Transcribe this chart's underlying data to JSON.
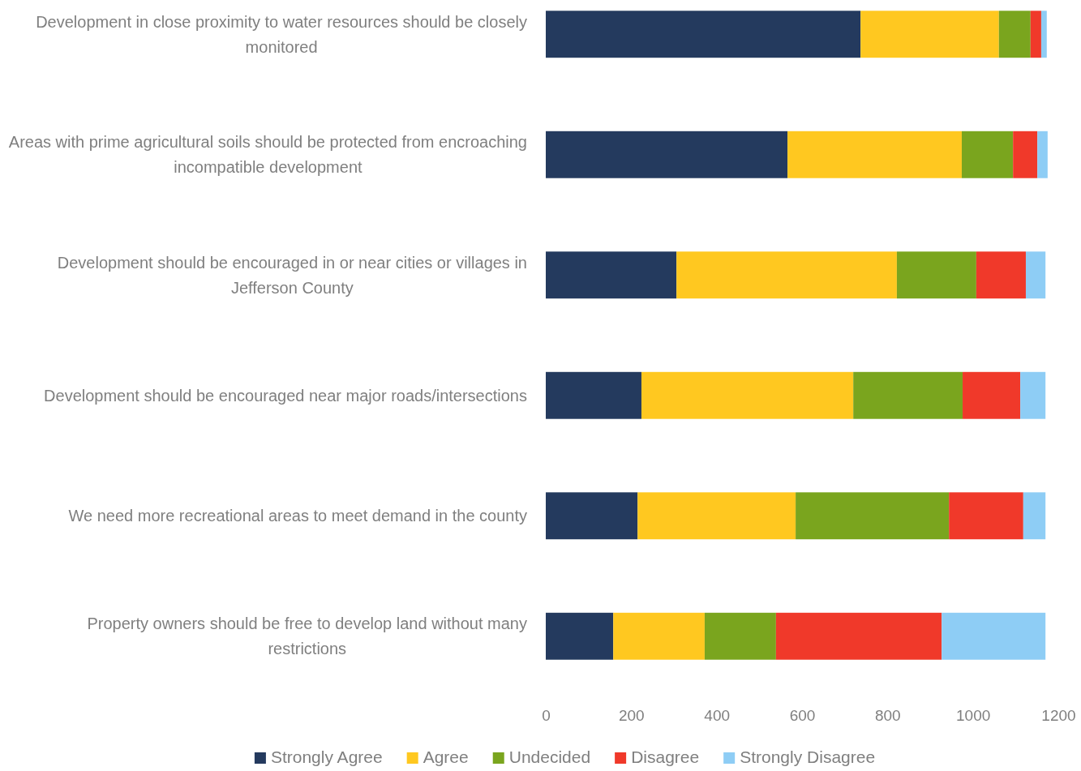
{
  "chart_data": {
    "type": "bar",
    "orientation": "horizontal",
    "stacked": true,
    "legend": "bottom",
    "grid": false,
    "categories": [
      "Development in close proximity to water resources should be closely monitored",
      "Areas with prime agricultural soils should be protected from encroaching incompatible development",
      "Development should be encouraged in or near cities or villages in Jefferson County",
      "Development should be encouraged near major roads/intersections",
      "We need more recreational areas to meet demand in the county",
      "Property owners should be free to develop land without many restrictions"
    ],
    "xlim": [
      0,
      1200
    ],
    "xticks": [
      0,
      200,
      400,
      600,
      800,
      1000,
      1200
    ],
    "series": [
      {
        "name": "Strongly Agree",
        "color": "#243a5e",
        "values": [
          737,
          566,
          306,
          224,
          215,
          158
        ]
      },
      {
        "name": "Agree",
        "color": "#ffc820",
        "values": [
          324,
          408,
          516,
          496,
          370,
          214
        ]
      },
      {
        "name": "Undecided",
        "color": "#7aa51e",
        "values": [
          74,
          120,
          186,
          256,
          359,
          167
        ]
      },
      {
        "name": "Disagree",
        "color": "#f0392a",
        "values": [
          25,
          57,
          116,
          135,
          174,
          388
        ]
      },
      {
        "name": "Strongly Disagree",
        "color": "#8ecdf5",
        "values": [
          13,
          24,
          46,
          59,
          52,
          243
        ]
      }
    ]
  }
}
